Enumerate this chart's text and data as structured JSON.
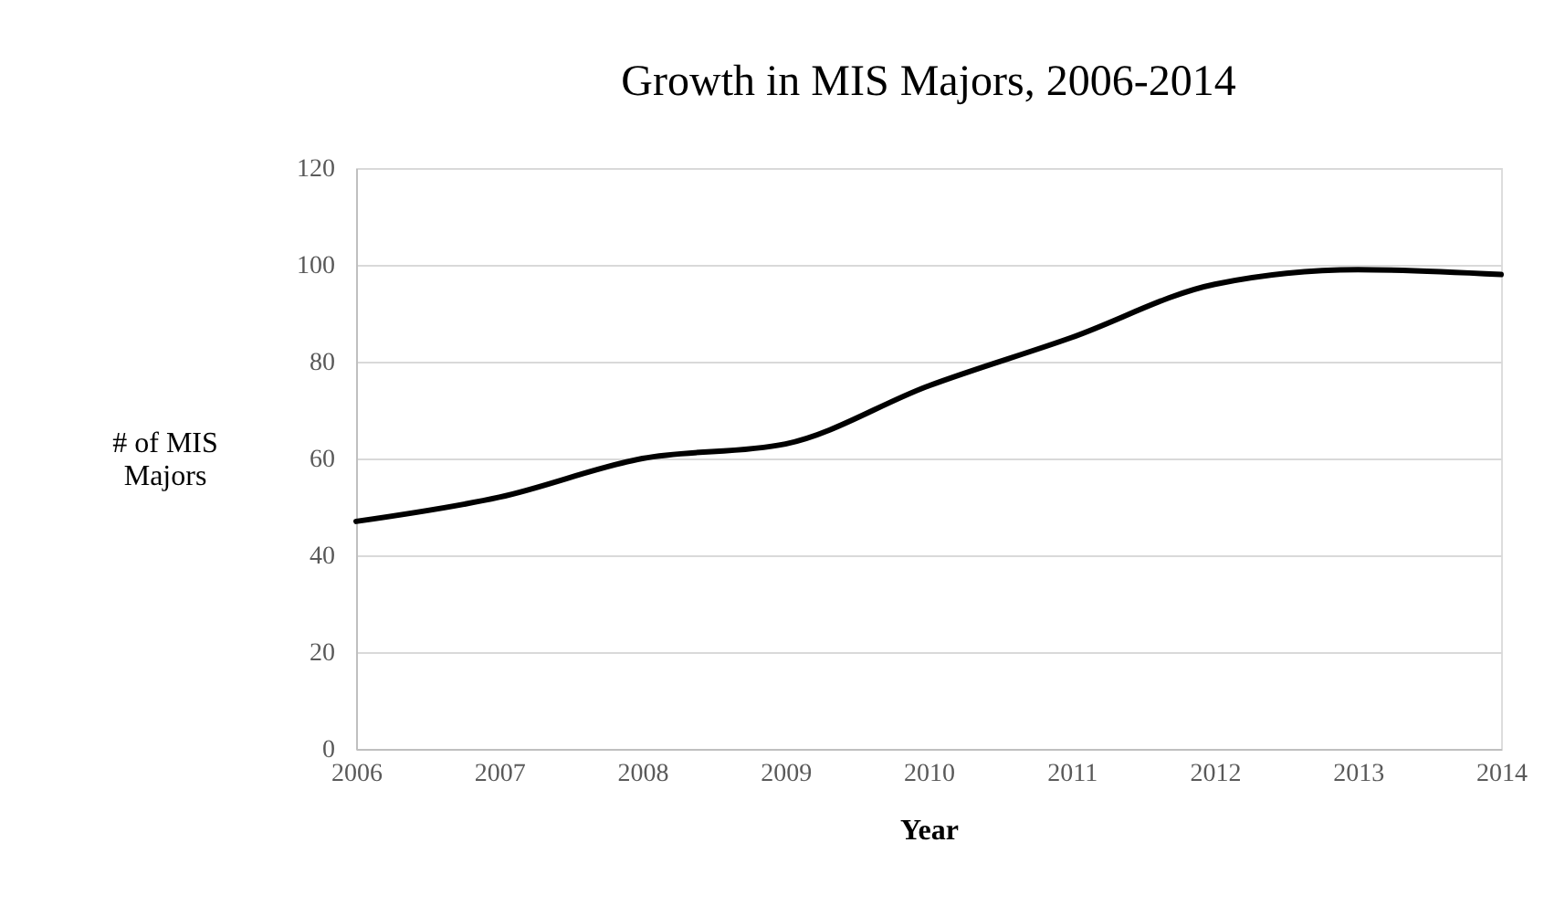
{
  "chart_data": {
    "type": "line",
    "title": "Growth in MIS Majors, 2006-2014",
    "xlabel": "Year",
    "ylabel": "# of MIS Majors",
    "x": [
      2006,
      2007,
      2008,
      2009,
      2010,
      2011,
      2012,
      2013,
      2014
    ],
    "series": [
      {
        "color": "#000000",
        "values": [
          47,
          52,
          60,
          63,
          75,
          85,
          96,
          99,
          98
        ]
      }
    ],
    "xlim": [
      2006,
      2014
    ],
    "xticks": [
      2006,
      2007,
      2008,
      2009,
      2010,
      2011,
      2012,
      2013,
      2014
    ],
    "ylim": [
      0,
      120
    ],
    "yticks": [
      0,
      20,
      40,
      60,
      80,
      100,
      120
    ],
    "grid": "y",
    "legend": false,
    "marker": "none",
    "line_style": "solid"
  }
}
